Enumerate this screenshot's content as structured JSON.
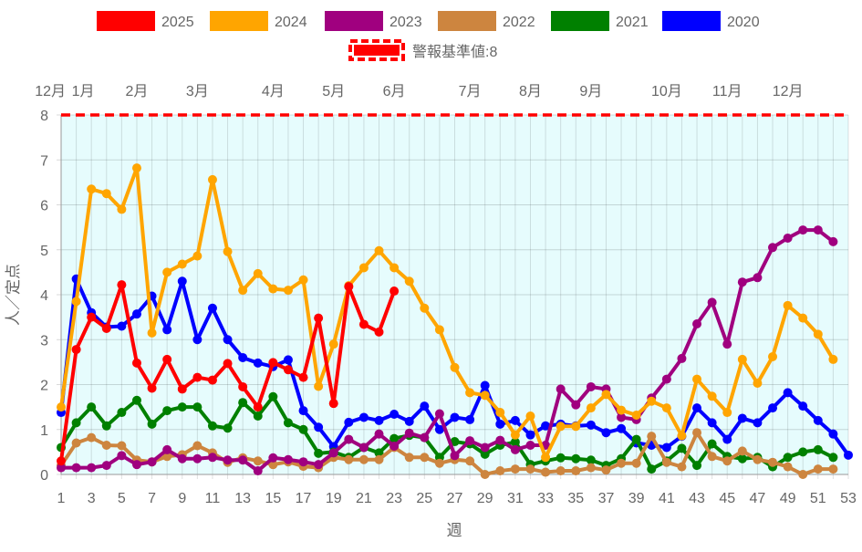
{
  "chart_data": {
    "type": "line",
    "xlabel": "週",
    "ylabel": "人／定点",
    "xlim": [
      1,
      53
    ],
    "ylim": [
      0,
      8
    ],
    "x_ticks": [
      1,
      3,
      5,
      7,
      9,
      11,
      13,
      15,
      17,
      19,
      21,
      23,
      25,
      27,
      29,
      31,
      33,
      35,
      37,
      39,
      41,
      43,
      45,
      47,
      49,
      51,
      53
    ],
    "y_ticks": [
      0,
      1,
      2,
      3,
      4,
      5,
      6,
      7,
      8
    ],
    "grid": true,
    "legend_position": "top",
    "threshold": {
      "label": "警報基準値:8",
      "value": 8,
      "color": "#ff0000"
    },
    "month_labels": [
      {
        "label": "12月",
        "week": 1
      },
      {
        "label": "1月",
        "week": 2
      },
      {
        "label": "2月",
        "week": 6
      },
      {
        "label": "3月",
        "week": 10
      },
      {
        "label": "4月",
        "week": 15
      },
      {
        "label": "5月",
        "week": 19
      },
      {
        "label": "6月",
        "week": 23
      },
      {
        "label": "7月",
        "week": 28
      },
      {
        "label": "8月",
        "week": 32
      },
      {
        "label": "9月",
        "week": 36
      },
      {
        "label": "10月",
        "week": 41
      },
      {
        "label": "11月",
        "week": 45
      },
      {
        "label": "12月",
        "week": 49
      }
    ],
    "series": [
      {
        "name": "2025",
        "color": "#ff0000",
        "values": [
          0.3,
          2.78,
          3.5,
          3.25,
          4.22,
          2.48,
          1.92,
          2.56,
          1.9,
          2.16,
          2.1,
          2.47,
          1.95,
          1.5,
          2.49,
          2.33,
          2.16,
          3.48,
          1.58,
          4.18,
          3.34,
          3.17,
          4.08
        ]
      },
      {
        "name": "2024",
        "color": "#ffa500",
        "values": [
          1.5,
          3.85,
          6.35,
          6.25,
          5.9,
          6.82,
          3.15,
          4.5,
          4.68,
          4.86,
          6.56,
          4.96,
          4.1,
          4.47,
          4.13,
          4.1,
          4.33,
          1.96,
          2.9,
          4.2,
          4.6,
          4.98,
          4.6,
          4.3,
          3.7,
          3.22,
          2.38,
          1.82,
          1.76,
          1.38,
          0.88,
          1.3,
          0.38,
          1.07,
          1.07,
          1.48,
          1.78,
          1.43,
          1.32,
          1.63,
          1.48,
          0.86,
          2.12,
          1.74,
          1.38,
          2.56,
          2.03,
          2.62,
          3.76,
          3.48,
          3.12,
          2.56
        ]
      },
      {
        "name": "2023",
        "color": "#a0007f",
        "values": [
          0.15,
          0.15,
          0.15,
          0.2,
          0.42,
          0.22,
          0.28,
          0.55,
          0.35,
          0.35,
          0.38,
          0.32,
          0.32,
          0.08,
          0.37,
          0.33,
          0.28,
          0.22,
          0.48,
          0.78,
          0.6,
          0.9,
          0.63,
          0.92,
          0.82,
          1.35,
          0.42,
          0.75,
          0.6,
          0.76,
          0.55,
          0.65,
          0.65,
          1.9,
          1.55,
          1.95,
          1.9,
          1.27,
          1.22,
          1.7,
          2.12,
          2.58,
          3.35,
          3.83,
          2.9,
          4.28,
          4.38,
          5.05,
          5.26,
          5.44,
          5.44,
          5.18
        ]
      },
      {
        "name": "2022",
        "color": "#cd853f",
        "values": [
          0.2,
          0.7,
          0.82,
          0.65,
          0.64,
          0.32,
          0.28,
          0.4,
          0.44,
          0.64,
          0.48,
          0.27,
          0.37,
          0.3,
          0.22,
          0.28,
          0.18,
          0.15,
          0.38,
          0.33,
          0.33,
          0.33,
          0.6,
          0.38,
          0.38,
          0.25,
          0.33,
          0.3,
          0.0,
          0.08,
          0.12,
          0.12,
          0.05,
          0.08,
          0.08,
          0.15,
          0.1,
          0.25,
          0.25,
          0.85,
          0.27,
          0.17,
          0.93,
          0.4,
          0.3,
          0.52,
          0.33,
          0.27,
          0.17,
          0.0,
          0.12,
          0.12
        ]
      },
      {
        "name": "2021",
        "color": "#008000",
        "values": [
          0.6,
          1.15,
          1.5,
          1.08,
          1.38,
          1.65,
          1.12,
          1.42,
          1.5,
          1.5,
          1.08,
          1.03,
          1.6,
          1.3,
          1.73,
          1.15,
          1.0,
          0.47,
          0.5,
          0.38,
          0.6,
          0.48,
          0.8,
          0.87,
          0.82,
          0.38,
          0.73,
          0.68,
          0.45,
          0.65,
          0.72,
          0.22,
          0.3,
          0.37,
          0.35,
          0.32,
          0.2,
          0.35,
          0.78,
          0.12,
          0.3,
          0.58,
          0.2,
          0.68,
          0.4,
          0.35,
          0.38,
          0.17,
          0.38,
          0.5,
          0.55,
          0.38
        ]
      },
      {
        "name": "2020",
        "color": "#0000ff",
        "values": [
          1.38,
          4.35,
          3.6,
          3.28,
          3.3,
          3.57,
          3.97,
          3.22,
          4.3,
          3.0,
          3.7,
          3.0,
          2.6,
          2.48,
          2.4,
          2.55,
          1.42,
          1.05,
          0.62,
          1.16,
          1.27,
          1.2,
          1.34,
          1.18,
          1.52,
          1.0,
          1.27,
          1.22,
          1.98,
          1.12,
          1.2,
          0.88,
          1.08,
          1.12,
          1.08,
          1.1,
          0.93,
          1.02,
          0.7,
          0.65,
          0.6,
          0.85,
          1.48,
          1.15,
          0.78,
          1.25,
          1.15,
          1.48,
          1.82,
          1.52,
          1.2,
          0.9,
          0.43
        ]
      }
    ]
  }
}
